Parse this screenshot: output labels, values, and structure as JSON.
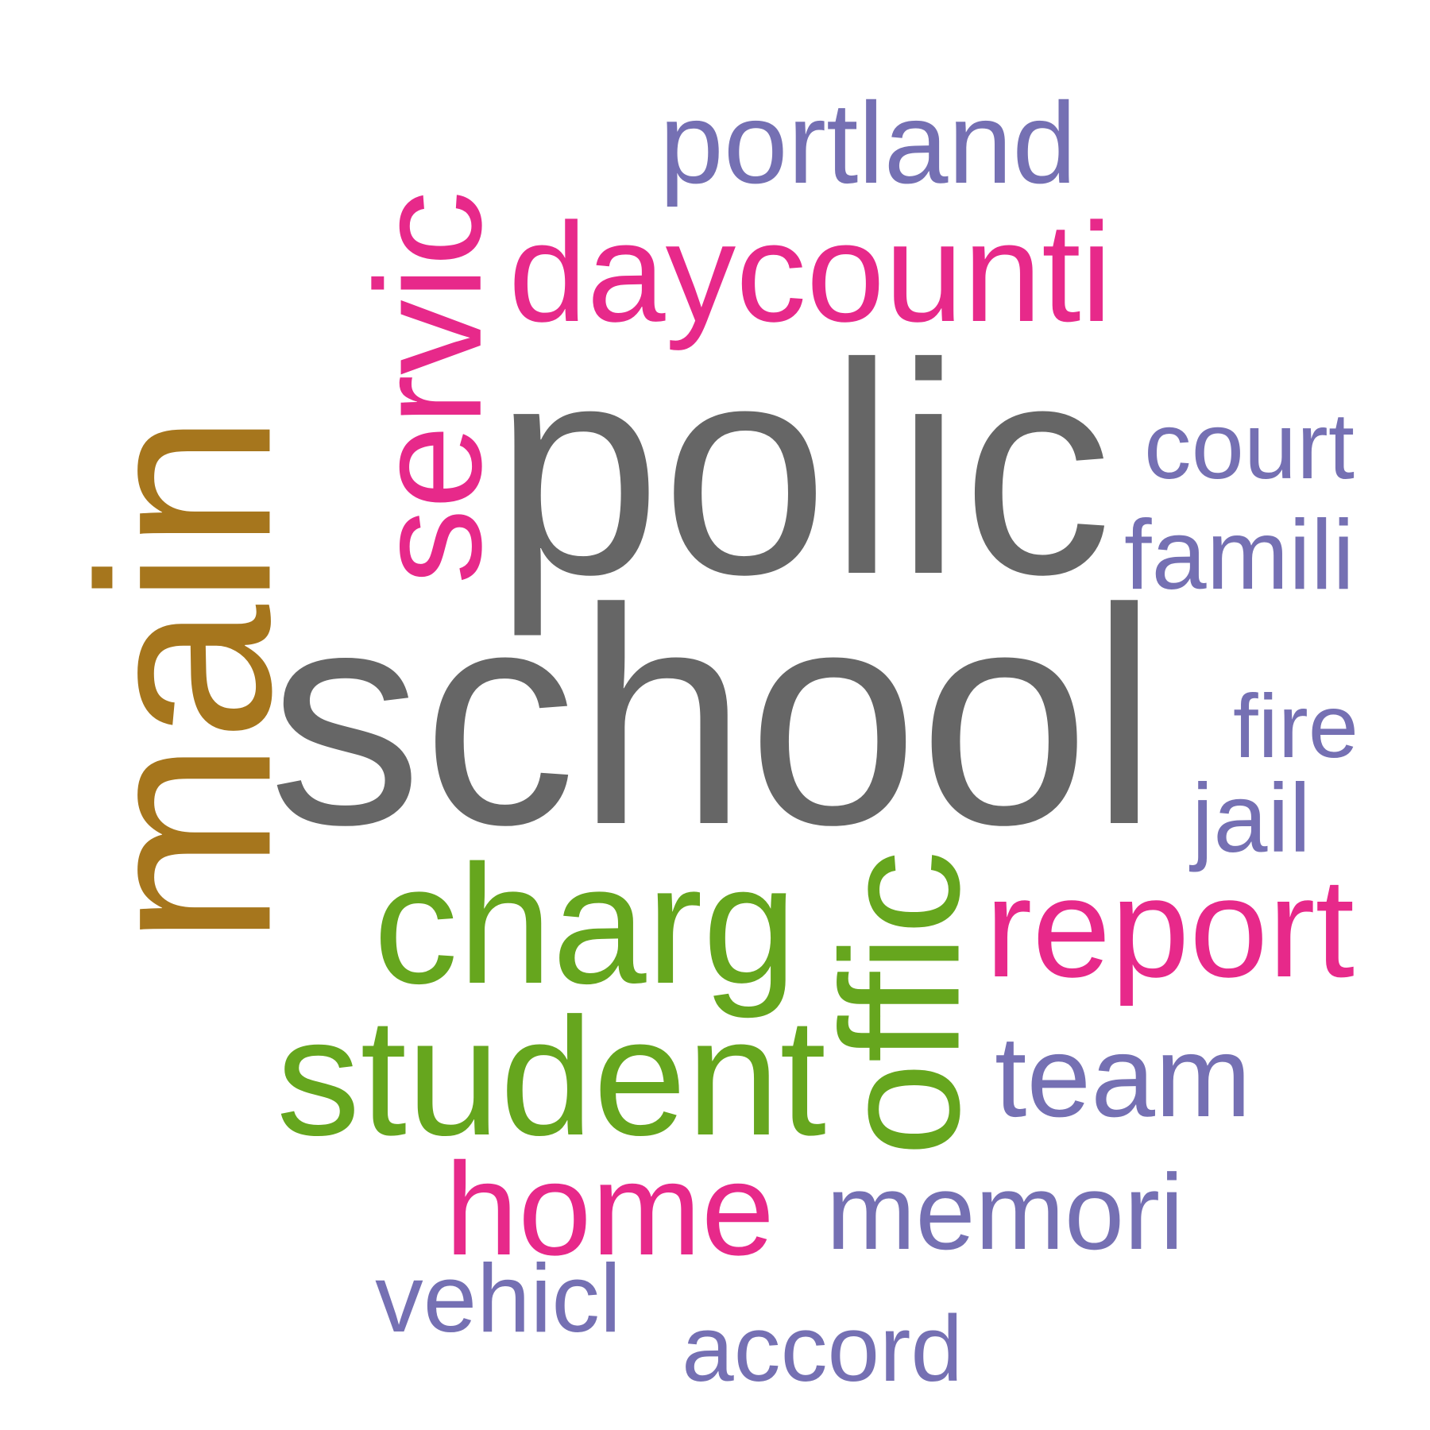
{
  "palette": {
    "gray": "#666666",
    "olive": "#a6761d",
    "pink": "#e7298a",
    "green": "#66a61e",
    "purple": "#7570b3"
  },
  "words": [
    {
      "id": "school",
      "text": "school",
      "color": "gray"
    },
    {
      "id": "polic",
      "text": "polic",
      "color": "gray"
    },
    {
      "id": "main",
      "text": "main",
      "color": "olive"
    },
    {
      "id": "daycounti",
      "text": "daycounti",
      "color": "pink"
    },
    {
      "id": "servic",
      "text": "servic",
      "color": "pink"
    },
    {
      "id": "portland",
      "text": "portland",
      "color": "purple"
    },
    {
      "id": "court",
      "text": "court",
      "color": "purple"
    },
    {
      "id": "famili",
      "text": "famili",
      "color": "purple"
    },
    {
      "id": "fire",
      "text": "fire",
      "color": "purple"
    },
    {
      "id": "jail",
      "text": "jail",
      "color": "purple"
    },
    {
      "id": "charg",
      "text": "charg",
      "color": "green"
    },
    {
      "id": "offic",
      "text": "offic",
      "color": "green"
    },
    {
      "id": "report",
      "text": "report",
      "color": "pink"
    },
    {
      "id": "student",
      "text": "student",
      "color": "green"
    },
    {
      "id": "team",
      "text": "team",
      "color": "purple"
    },
    {
      "id": "home",
      "text": "home",
      "color": "pink"
    },
    {
      "id": "memori",
      "text": "memori",
      "color": "purple"
    },
    {
      "id": "vehicl",
      "text": "vehicl",
      "color": "purple"
    },
    {
      "id": "accord",
      "text": "accord",
      "color": "purple"
    }
  ]
}
